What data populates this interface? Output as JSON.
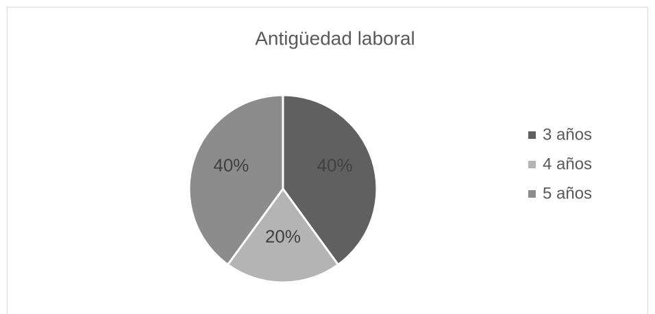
{
  "chart_data": {
    "type": "pie",
    "title": "Antigüedad laboral",
    "categories": [
      "3 años",
      "4 años",
      "5 años"
    ],
    "values": [
      40,
      20,
      40
    ],
    "value_labels": [
      "40%",
      "20%",
      "40%"
    ],
    "colors": [
      "#606060",
      "#b4b4b4",
      "#8c8c8c"
    ],
    "legend": "right"
  }
}
